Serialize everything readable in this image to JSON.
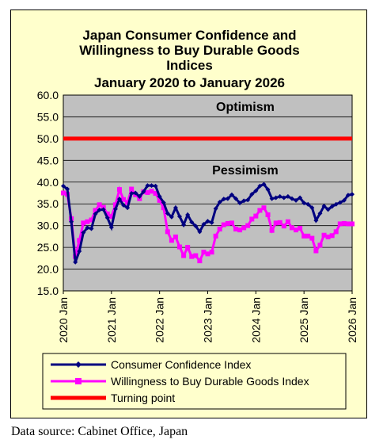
{
  "chart_data": {
    "type": "line",
    "title_lines": [
      "Japan Consumer Confidence and",
      "Willingness to Buy Durable Goods",
      "Indices",
      "January 2020 to January 2026"
    ],
    "xlabel": "",
    "ylabel": "",
    "ylim": [
      15.0,
      60.0
    ],
    "y_ticks": [
      "15.0",
      "20.0",
      "25.0",
      "30.0",
      "35.0",
      "40.0",
      "45.0",
      "50.0",
      "55.0",
      "60.0"
    ],
    "x_ticks": [
      "2020 Jan",
      "2021 Jan",
      "2022 Jan",
      "2023 Jan",
      "2024 Jan",
      "2025 Jan",
      "2026 Jan"
    ],
    "annotations": {
      "upper": "Optimism",
      "lower": "Pessimism"
    },
    "turning_point": 50.0,
    "grid": true,
    "legend_position": "bottom",
    "series": [
      {
        "name": "Consumer Confidence Index",
        "color": "#000080",
        "marker": "diamond",
        "values": [
          39.1,
          38.4,
          30.9,
          21.6,
          24.1,
          28.4,
          29.5,
          29.3,
          32.7,
          33.6,
          33.7,
          31.8,
          29.6,
          33.8,
          36.1,
          34.7,
          34.1,
          37.4,
          37.5,
          36.7,
          37.8,
          39.2,
          39.2,
          39.1,
          36.7,
          35.3,
          32.8,
          32.0,
          34.1,
          32.1,
          30.2,
          32.5,
          30.8,
          29.9,
          28.6,
          30.3,
          31.0,
          30.7,
          33.9,
          35.4,
          36.1,
          36.2,
          37.1,
          36.2,
          35.2,
          35.7,
          35.9,
          37.2,
          38.0,
          39.1,
          39.5,
          38.3,
          36.2,
          36.4,
          36.7,
          36.4,
          36.7,
          36.2,
          35.8,
          36.4,
          35.2,
          34.9,
          34.1,
          31.2,
          32.8,
          34.5,
          33.7,
          34.4,
          34.9,
          35.3,
          35.8,
          37.0,
          37.2
        ]
      },
      {
        "name": "Willingness to Buy Durable Goods Index",
        "color": "#ff00ff",
        "marker": "square",
        "values": [
          37.5,
          37.2,
          31.6,
          22.9,
          26.6,
          30.6,
          30.9,
          31.3,
          33.5,
          34.8,
          34.2,
          32.7,
          32.1,
          34.8,
          38.3,
          36.0,
          35.3,
          38.4,
          37.1,
          36.2,
          37.8,
          37.6,
          37.9,
          37.4,
          35.8,
          34.1,
          28.6,
          26.6,
          27.4,
          25.1,
          23.1,
          25.0,
          22.9,
          23.1,
          21.9,
          23.9,
          23.5,
          23.9,
          27.6,
          29.2,
          30.2,
          30.5,
          30.6,
          29.2,
          29.0,
          29.5,
          30.0,
          31.5,
          32.2,
          33.5,
          34.1,
          32.5,
          28.9,
          30.6,
          30.7,
          29.9,
          30.9,
          29.5,
          29.0,
          29.4,
          27.6,
          27.6,
          27.1,
          24.2,
          25.5,
          27.8,
          27.4,
          27.7,
          28.6,
          30.4,
          30.5,
          30.4,
          30.4
        ]
      },
      {
        "name": "Turning point",
        "color": "#ff0000",
        "marker": "none",
        "values": [
          50.0
        ]
      }
    ]
  },
  "source": "Data source: Cabinet Office, Japan"
}
